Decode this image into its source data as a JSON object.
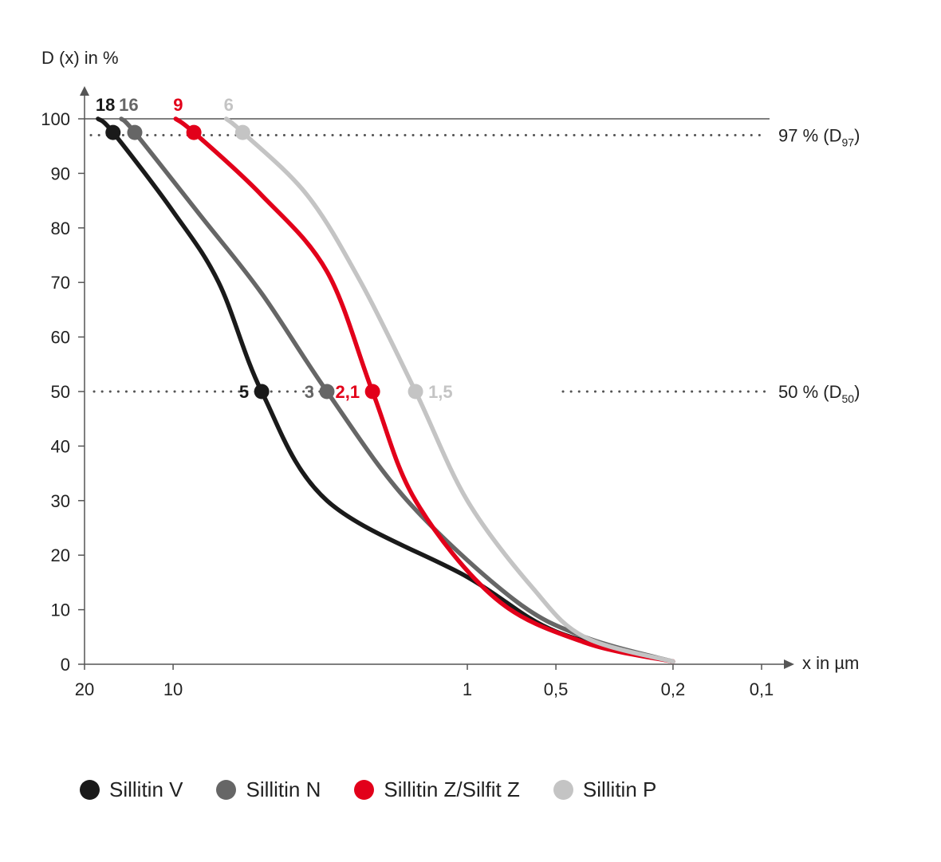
{
  "chart_data": {
    "type": "line",
    "ylabel": "D (x) in %",
    "xlabel": "x in µm",
    "x_scale": "log-reversed",
    "xlim": [
      20,
      0.1
    ],
    "ylim": [
      0,
      100
    ],
    "y_ticks": [
      0,
      10,
      20,
      30,
      40,
      50,
      60,
      70,
      80,
      90,
      100
    ],
    "x_ticks": [
      {
        "value": 20,
        "label": "20"
      },
      {
        "value": 10,
        "label": "10"
      },
      {
        "value": 1,
        "label": "1"
      },
      {
        "value": 0.5,
        "label": "0,5"
      },
      {
        "value": 0.2,
        "label": "0,2"
      },
      {
        "value": 0.1,
        "label": "0,1"
      }
    ],
    "reference_lines": [
      {
        "y": 97,
        "label": "97 % (D",
        "sub": "97",
        "tail": ")"
      },
      {
        "y": 50,
        "label": "50 % (D",
        "sub": "50",
        "tail": ")"
      }
    ],
    "series": [
      {
        "name": "Sillitin V",
        "color": "#1a1a1a",
        "top_label": "18",
        "d97": 16,
        "d50": 5,
        "d50_label": "5",
        "points": [
          [
            18,
            100
          ],
          [
            16,
            97.5
          ],
          [
            10,
            83
          ],
          [
            7,
            70
          ],
          [
            5,
            50
          ],
          [
            3,
            30
          ],
          [
            1,
            16
          ],
          [
            0.5,
            6
          ],
          [
            0.2,
            0.5
          ]
        ]
      },
      {
        "name": "Sillitin N",
        "color": "#666666",
        "top_label": "16",
        "d97": 13.5,
        "d50": 3,
        "d50_label": "3",
        "points": [
          [
            15,
            100
          ],
          [
            13.5,
            97.5
          ],
          [
            8,
            82
          ],
          [
            5,
            68
          ],
          [
            3,
            50
          ],
          [
            1.6,
            30
          ],
          [
            0.7,
            12
          ],
          [
            0.4,
            5
          ],
          [
            0.2,
            0.5
          ]
        ]
      },
      {
        "name": "Sillitin Z/Silfit Z",
        "color": "#e2001a",
        "top_label": "9",
        "d97": 8.5,
        "d50": 2.1,
        "d50_label": "2,1",
        "points": [
          [
            9.8,
            100
          ],
          [
            8.5,
            97.5
          ],
          [
            5,
            86
          ],
          [
            3,
            72
          ],
          [
            2.1,
            50
          ],
          [
            1.5,
            30
          ],
          [
            0.8,
            12
          ],
          [
            0.4,
            4
          ],
          [
            0.2,
            0.5
          ]
        ]
      },
      {
        "name": "Sillitin P",
        "color": "#c4c4c4",
        "top_label": "6",
        "d97": 5.8,
        "d50": 1.5,
        "d50_label": "1,5",
        "points": [
          [
            6.6,
            100
          ],
          [
            5.8,
            97.5
          ],
          [
            3.5,
            86
          ],
          [
            2.3,
            70
          ],
          [
            1.5,
            50
          ],
          [
            1,
            30
          ],
          [
            0.6,
            14
          ],
          [
            0.4,
            5
          ],
          [
            0.2,
            0.5
          ]
        ]
      }
    ]
  }
}
